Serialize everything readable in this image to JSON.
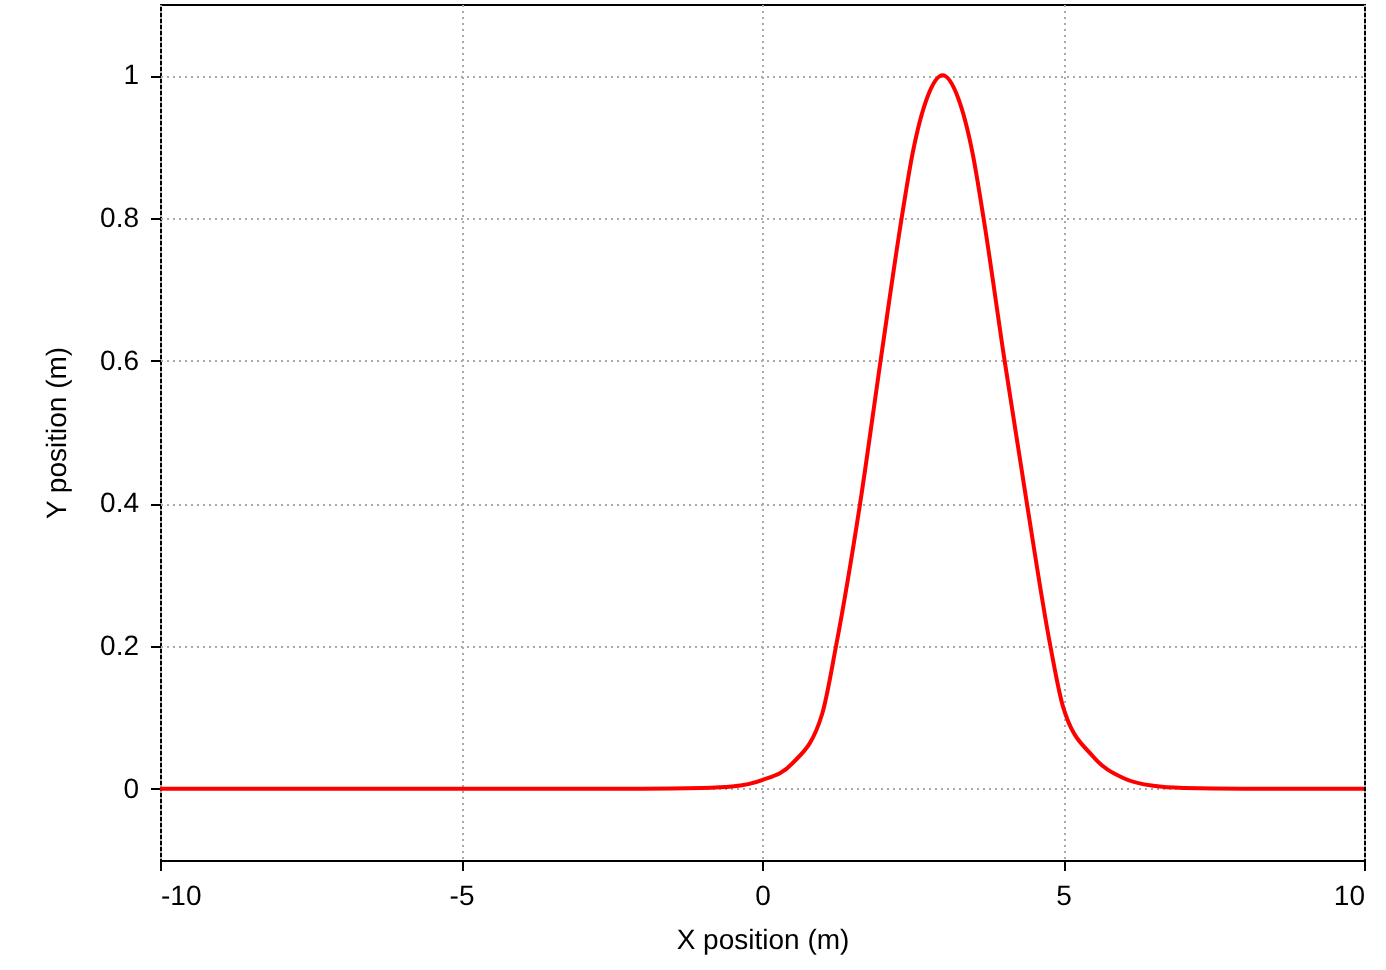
{
  "chart_data": {
    "type": "line",
    "xlabel": "X position (m)",
    "ylabel": "Y position (m)",
    "x": [
      -10,
      -2,
      -1,
      -0.5,
      0,
      0.5,
      1,
      1.23,
      1.63,
      1.97,
      2.32,
      2.5,
      2.75,
      3,
      3.25,
      3.5,
      3.68,
      4.03,
      4.4,
      4.79,
      5,
      5.5,
      6,
      6.5,
      7,
      8,
      10
    ],
    "series": [
      {
        "color": "#ff0000",
        "values": [
          0,
          0,
          0.001,
          0.003,
          0.012,
          0.035,
          0.105,
          0.2,
          0.4,
          0.6,
          0.8,
          0.89,
          0.97,
          1,
          0.97,
          0.89,
          0.8,
          0.6,
          0.4,
          0.2,
          0.115,
          0.045,
          0.015,
          0.004,
          0.001,
          0,
          0
        ]
      }
    ],
    "xlim": [
      -10,
      10
    ],
    "ylim": [
      -0.1,
      1.1
    ],
    "xticks": [
      -10,
      -5,
      0,
      5,
      10
    ],
    "yticks": [
      0,
      0.2,
      0.4,
      0.6,
      0.8,
      1
    ],
    "grid": true,
    "marker": "none",
    "line_style": "solid"
  }
}
